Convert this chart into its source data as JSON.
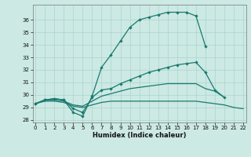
{
  "xlabel": "Humidex (Indice chaleur)",
  "background_color": "#cce9e4",
  "line_color": "#1a7a6e",
  "grid_color": "#aad4ce",
  "x_values": [
    0,
    1,
    2,
    3,
    4,
    5,
    6,
    7,
    8,
    9,
    10,
    11,
    12,
    13,
    14,
    15,
    16,
    17,
    18,
    19,
    20,
    21,
    22
  ],
  "series1": [
    29.3,
    29.6,
    29.7,
    29.6,
    28.6,
    28.3,
    29.9,
    32.2,
    33.2,
    34.3,
    35.4,
    36.0,
    36.2,
    36.4,
    36.6,
    36.6,
    36.6,
    36.3,
    33.9,
    null,
    null,
    null,
    null
  ],
  "series2": [
    29.3,
    29.6,
    29.7,
    29.6,
    28.9,
    28.6,
    29.8,
    30.4,
    30.5,
    30.9,
    31.2,
    31.5,
    31.8,
    32.0,
    32.2,
    32.4,
    32.5,
    32.6,
    31.8,
    30.4,
    29.8,
    null,
    null
  ],
  "series3": [
    29.3,
    29.6,
    29.6,
    29.5,
    29.2,
    29.1,
    29.5,
    29.9,
    30.1,
    30.3,
    30.5,
    30.6,
    30.7,
    30.8,
    30.9,
    30.9,
    30.9,
    30.9,
    30.5,
    30.3,
    29.8,
    null,
    null
  ],
  "series4": [
    29.3,
    29.5,
    29.5,
    29.4,
    29.1,
    29.0,
    29.2,
    29.4,
    29.5,
    29.5,
    29.5,
    29.5,
    29.5,
    29.5,
    29.5,
    29.5,
    29.5,
    29.5,
    29.4,
    29.3,
    29.2,
    29.0,
    28.9
  ],
  "ylim": [
    27.8,
    37.2
  ],
  "yticks": [
    28,
    29,
    30,
    31,
    32,
    33,
    34,
    35,
    36
  ],
  "xticks": [
    0,
    1,
    2,
    3,
    4,
    5,
    6,
    7,
    8,
    9,
    10,
    11,
    12,
    13,
    14,
    15,
    16,
    17,
    18,
    19,
    20,
    21,
    22
  ],
  "xlabel_fontsize": 6.0,
  "tick_fontsize": 5.0,
  "linewidth": 0.9,
  "markersize": 2.2
}
